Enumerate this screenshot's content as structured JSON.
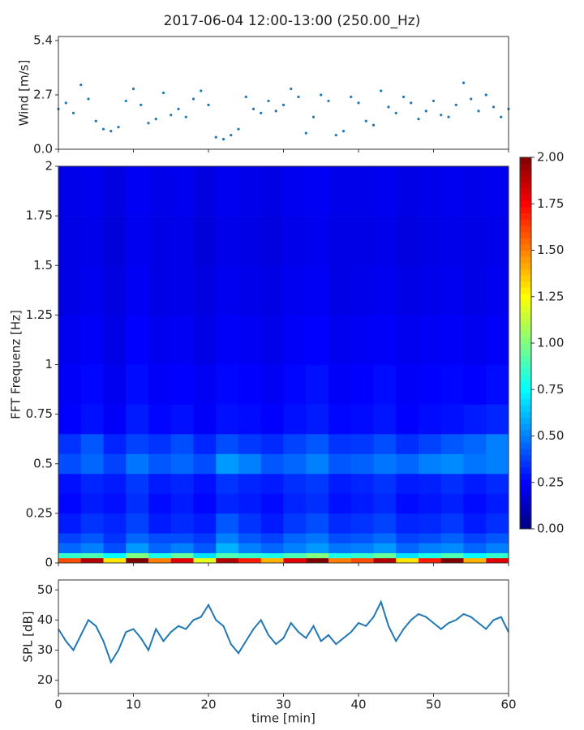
{
  "chart_data": [
    {
      "type": "scatter",
      "title": "2017-06-04 12:00-13:00 (250.00_Hz)",
      "ylabel": "Wind [m/s]",
      "color": "#1f77b4",
      "x": [
        0,
        1,
        2,
        3,
        4,
        5,
        6,
        7,
        8,
        9,
        10,
        11,
        12,
        13,
        14,
        15,
        16,
        17,
        18,
        19,
        20,
        21,
        22,
        23,
        24,
        25,
        26,
        27,
        28,
        29,
        30,
        31,
        32,
        33,
        34,
        35,
        36,
        37,
        38,
        39,
        40,
        41,
        42,
        43,
        44,
        45,
        46,
        47,
        48,
        49,
        50,
        51,
        52,
        53,
        54,
        55,
        56,
        57,
        58,
        59,
        60
      ],
      "values": [
        2.0,
        2.3,
        1.8,
        3.2,
        2.5,
        1.4,
        1.0,
        0.9,
        1.1,
        2.4,
        3.0,
        2.2,
        1.3,
        1.5,
        2.8,
        1.7,
        2.0,
        1.6,
        2.5,
        2.9,
        2.2,
        0.6,
        0.5,
        0.7,
        1.0,
        2.6,
        2.0,
        1.8,
        2.4,
        1.9,
        2.2,
        3.0,
        2.6,
        0.8,
        1.6,
        2.7,
        2.4,
        0.7,
        0.9,
        2.6,
        2.3,
        1.4,
        1.2,
        2.9,
        2.1,
        1.8,
        2.6,
        2.3,
        1.5,
        1.9,
        2.4,
        1.7,
        1.6,
        2.2,
        3.3,
        2.5,
        1.9,
        2.7,
        2.1,
        1.6,
        2.0
      ],
      "xlim": [
        0,
        60
      ],
      "xticks": [
        0,
        10,
        20,
        30,
        40,
        50,
        60
      ],
      "show_xtick_labels": false,
      "ylim": [
        0,
        5.6
      ],
      "yticks": [
        {
          "value": 0,
          "label": "0.0"
        },
        {
          "value": 2.7,
          "label": "2.7"
        },
        {
          "value": 5.4,
          "label": "5.4"
        }
      ]
    },
    {
      "type": "heatmap",
      "ylabel": "FFT Frequenz [Hz]",
      "colormap": "jet",
      "zlim": [
        0,
        2
      ],
      "x_edges": [
        0,
        3,
        6,
        9,
        12,
        15,
        18,
        21,
        24,
        27,
        30,
        33,
        36,
        39,
        42,
        45,
        48,
        51,
        54,
        57,
        60
      ],
      "y_edges": [
        0,
        0.025,
        0.05,
        0.1,
        0.15,
        0.25,
        0.35,
        0.45,
        0.55,
        0.65,
        0.8,
        1.0,
        1.25,
        1.5,
        1.75,
        2
      ],
      "z": [
        [
          1.6,
          1.9,
          1.3,
          2.0,
          1.5,
          1.8,
          1.2,
          1.9,
          1.7,
          1.4,
          1.8,
          2.0,
          1.5,
          1.6,
          1.9,
          1.3,
          1.7,
          2.0,
          1.4,
          1.8
        ],
        [
          0.85,
          0.9,
          0.75,
          1.0,
          0.8,
          0.95,
          0.7,
          0.9,
          0.85,
          0.8,
          0.9,
          1.0,
          0.8,
          0.85,
          0.95,
          0.7,
          0.8,
          0.9,
          0.75,
          0.85
        ],
        [
          0.45,
          0.5,
          0.4,
          0.55,
          0.45,
          0.5,
          0.42,
          0.6,
          0.5,
          0.45,
          0.5,
          0.55,
          0.48,
          0.5,
          0.55,
          0.45,
          0.5,
          0.52,
          0.45,
          0.5
        ],
        [
          0.38,
          0.42,
          0.35,
          0.45,
          0.4,
          0.4,
          0.36,
          0.5,
          0.42,
          0.38,
          0.45,
          0.48,
          0.4,
          0.42,
          0.46,
          0.38,
          0.4,
          0.44,
          0.38,
          0.42
        ],
        [
          0.3,
          0.35,
          0.32,
          0.38,
          0.3,
          0.33,
          0.3,
          0.42,
          0.35,
          0.3,
          0.36,
          0.4,
          0.33,
          0.35,
          0.38,
          0.32,
          0.33,
          0.36,
          0.3,
          0.34
        ],
        [
          0.26,
          0.3,
          0.28,
          0.34,
          0.27,
          0.3,
          0.26,
          0.32,
          0.3,
          0.27,
          0.32,
          0.34,
          0.28,
          0.3,
          0.33,
          0.27,
          0.29,
          0.31,
          0.27,
          0.3
        ],
        [
          0.28,
          0.32,
          0.3,
          0.36,
          0.3,
          0.32,
          0.28,
          0.35,
          0.32,
          0.3,
          0.34,
          0.36,
          0.3,
          0.32,
          0.35,
          0.3,
          0.31,
          0.34,
          0.3,
          0.33
        ],
        [
          0.4,
          0.45,
          0.38,
          0.48,
          0.42,
          0.45,
          0.4,
          0.55,
          0.5,
          0.42,
          0.45,
          0.5,
          0.42,
          0.44,
          0.48,
          0.45,
          0.5,
          0.52,
          0.48,
          0.5
        ],
        [
          0.35,
          0.42,
          0.32,
          0.38,
          0.35,
          0.4,
          0.32,
          0.4,
          0.36,
          0.33,
          0.38,
          0.42,
          0.35,
          0.36,
          0.4,
          0.34,
          0.38,
          0.42,
          0.45,
          0.5
        ],
        [
          0.25,
          0.28,
          0.24,
          0.3,
          0.26,
          0.28,
          0.24,
          0.28,
          0.27,
          0.25,
          0.28,
          0.3,
          0.26,
          0.27,
          0.29,
          0.25,
          0.27,
          0.28,
          0.3,
          0.32
        ],
        [
          0.24,
          0.26,
          0.22,
          0.27,
          0.24,
          0.25,
          0.23,
          0.26,
          0.25,
          0.23,
          0.26,
          0.28,
          0.24,
          0.25,
          0.27,
          0.24,
          0.25,
          0.26,
          0.25,
          0.27
        ],
        [
          0.22,
          0.24,
          0.2,
          0.25,
          0.22,
          0.23,
          0.2,
          0.24,
          0.23,
          0.21,
          0.24,
          0.25,
          0.22,
          0.23,
          0.24,
          0.22,
          0.23,
          0.24,
          0.22,
          0.24
        ],
        [
          0.2,
          0.22,
          0.19,
          0.23,
          0.2,
          0.21,
          0.19,
          0.22,
          0.21,
          0.2,
          0.22,
          0.23,
          0.2,
          0.21,
          0.22,
          0.2,
          0.21,
          0.22,
          0.2,
          0.22
        ],
        [
          0.2,
          0.21,
          0.18,
          0.22,
          0.2,
          0.21,
          0.18,
          0.21,
          0.2,
          0.19,
          0.21,
          0.22,
          0.2,
          0.2,
          0.21,
          0.19,
          0.2,
          0.21,
          0.2,
          0.21
        ],
        [
          0.21,
          0.22,
          0.19,
          0.23,
          0.21,
          0.22,
          0.19,
          0.22,
          0.21,
          0.2,
          0.22,
          0.23,
          0.21,
          0.21,
          0.22,
          0.2,
          0.21,
          0.22,
          0.21,
          0.22
        ]
      ],
      "xlim": [
        0,
        60
      ],
      "xticks": [
        0,
        10,
        20,
        30,
        40,
        50,
        60
      ],
      "show_xtick_labels": false,
      "ylim": [
        0,
        2
      ],
      "yticks": [
        0,
        0.25,
        0.5,
        0.75,
        1,
        1.25,
        1.5,
        1.75,
        2
      ],
      "colorbar_ticks": [
        {
          "value": 0,
          "label": "0.00"
        },
        {
          "value": 0.25,
          "label": "0.25"
        },
        {
          "value": 0.5,
          "label": "0.50"
        },
        {
          "value": 0.75,
          "label": "0.75"
        },
        {
          "value": 1,
          "label": "1.00"
        },
        {
          "value": 1.25,
          "label": "1.25"
        },
        {
          "value": 1.5,
          "label": "1.50"
        },
        {
          "value": 1.75,
          "label": "1.75"
        },
        {
          "value": 2,
          "label": "2.00"
        }
      ]
    },
    {
      "type": "line",
      "ylabel": "SPL [dB]",
      "xlabel": "time [min]",
      "color": "#1f77b4",
      "x": [
        0,
        1,
        2,
        3,
        4,
        5,
        6,
        7,
        8,
        9,
        10,
        11,
        12,
        13,
        14,
        15,
        16,
        17,
        18,
        19,
        20,
        21,
        22,
        23,
        24,
        25,
        26,
        27,
        28,
        29,
        30,
        31,
        32,
        33,
        34,
        35,
        36,
        37,
        38,
        39,
        40,
        41,
        42,
        43,
        44,
        45,
        46,
        47,
        48,
        49,
        50,
        51,
        52,
        53,
        54,
        55,
        56,
        57,
        58,
        59,
        60
      ],
      "values": [
        37,
        33,
        30,
        35,
        40,
        38,
        33,
        26,
        30,
        36,
        37,
        34,
        30,
        37,
        33,
        36,
        38,
        37,
        40,
        41,
        45,
        40,
        38,
        32,
        29,
        33,
        37,
        40,
        35,
        32,
        34,
        39,
        36,
        34,
        38,
        33,
        35,
        32,
        34,
        36,
        39,
        38,
        41,
        46,
        38,
        33,
        37,
        40,
        42,
        41,
        39,
        37,
        39,
        40,
        42,
        41,
        39,
        37,
        40,
        41,
        36
      ],
      "xlim": [
        0,
        60
      ],
      "xticks": [
        0,
        10,
        20,
        30,
        40,
        50,
        60
      ],
      "show_xtick_labels": true,
      "ylim": [
        15.6,
        53.3
      ],
      "yticks": [
        20,
        30,
        40,
        50
      ]
    }
  ]
}
